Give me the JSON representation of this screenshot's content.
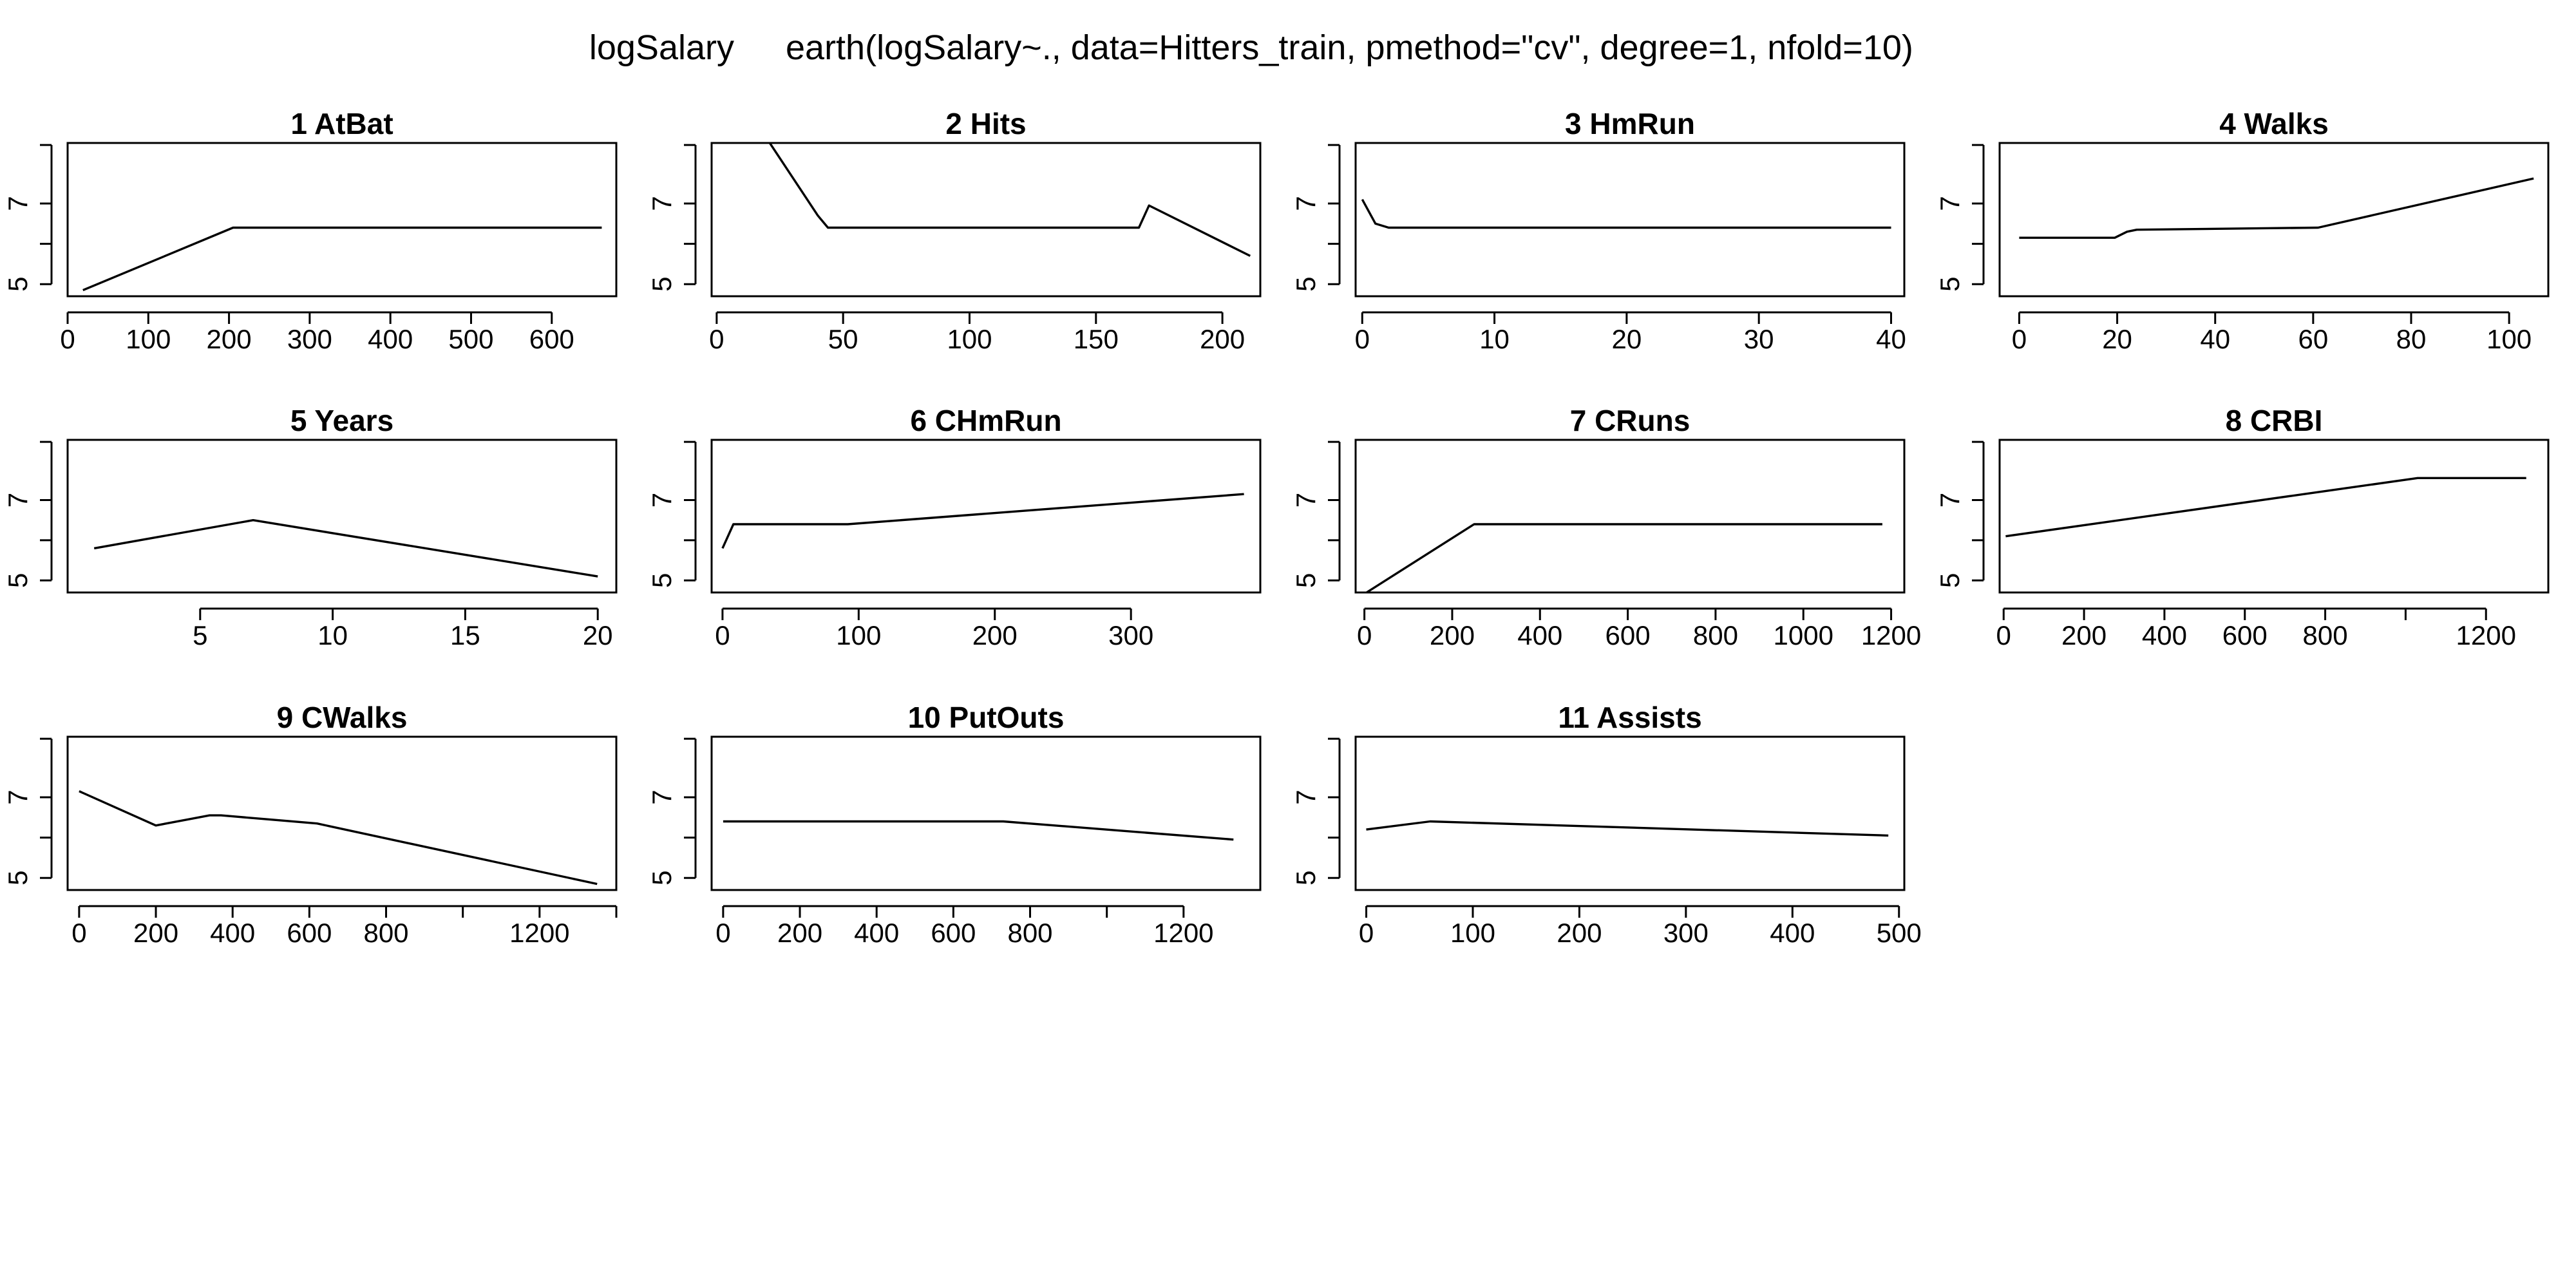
{
  "figure": {
    "response": "logSalary",
    "model_call": "earth(logSalary~., data=Hitters_train, pmethod=\"cv\", degree=1, nfold=10)"
  },
  "chart_data": [
    {
      "type": "line",
      "title": "1  AtBat",
      "xlabel": "",
      "ylabel": "",
      "xlim": [
        0,
        680
      ],
      "ylim": [
        4.7,
        8.5
      ],
      "x_ticks": [
        0,
        100,
        200,
        300,
        400,
        500,
        600
      ],
      "x_tick_labels": [
        "0",
        "100",
        "200",
        "300",
        "400",
        "500",
        "600"
      ],
      "y_ticks": [
        5,
        7
      ],
      "y_tick_labels": [
        "5",
        "7"
      ],
      "x": [
        19,
        205,
        662
      ],
      "y": [
        4.85,
        6.4,
        6.4
      ]
    },
    {
      "type": "line",
      "title": "2  Hits",
      "xlabel": "",
      "ylabel": "",
      "xlim": [
        -2,
        215
      ],
      "ylim": [
        4.7,
        8.5
      ],
      "x_ticks": [
        0,
        50,
        100,
        150,
        200
      ],
      "x_tick_labels": [
        "0",
        "50",
        "100",
        "150",
        "200"
      ],
      "y_ticks": [
        5,
        7
      ],
      "y_tick_labels": [
        "5",
        "7"
      ],
      "x": [
        21,
        40,
        44,
        167,
        171,
        211
      ],
      "y": [
        8.5,
        6.7,
        6.4,
        6.4,
        6.95,
        5.7
      ]
    },
    {
      "type": "line",
      "title": "3  HmRun",
      "xlabel": "",
      "ylabel": "",
      "xlim": [
        -0.5,
        41
      ],
      "ylim": [
        4.7,
        8.5
      ],
      "x_ticks": [
        0,
        10,
        20,
        30,
        40
      ],
      "x_tick_labels": [
        "0",
        "10",
        "20",
        "30",
        "40"
      ],
      "y_ticks": [
        5,
        7
      ],
      "y_tick_labels": [
        "5",
        "7"
      ],
      "x": [
        0,
        1,
        2,
        40
      ],
      "y": [
        7.1,
        6.5,
        6.4,
        6.4
      ]
    },
    {
      "type": "line",
      "title": "4  Walks",
      "xlabel": "",
      "ylabel": "",
      "xlim": [
        -4,
        108
      ],
      "ylim": [
        4.7,
        8.5
      ],
      "x_ticks": [
        0,
        20,
        40,
        60,
        80,
        100
      ],
      "x_tick_labels": [
        "0",
        "20",
        "40",
        "60",
        "80",
        "100"
      ],
      "y_ticks": [
        5,
        7
      ],
      "y_tick_labels": [
        "5",
        "7"
      ],
      "x": [
        0,
        19.5,
        22,
        24,
        61,
        105
      ],
      "y": [
        6.15,
        6.15,
        6.3,
        6.35,
        6.4,
        7.62
      ]
    },
    {
      "type": "line",
      "title": "5  Years",
      "xlabel": "",
      "ylabel": "",
      "xlim": [
        0,
        20.7
      ],
      "ylim": [
        4.7,
        8.5
      ],
      "x_ticks": [
        5,
        10,
        15,
        20
      ],
      "x_tick_labels": [
        "5",
        "10",
        "15",
        "20"
      ],
      "y_ticks": [
        5,
        7
      ],
      "y_tick_labels": [
        "5",
        "7"
      ],
      "x": [
        1,
        7,
        20
      ],
      "y": [
        5.8,
        6.5,
        5.1
      ]
    },
    {
      "type": "line",
      "title": "6  CHmRun",
      "xlabel": "",
      "ylabel": "",
      "xlim": [
        -8,
        395
      ],
      "ylim": [
        4.7,
        8.5
      ],
      "x_ticks": [
        0,
        100,
        200,
        300
      ],
      "x_tick_labels": [
        "0",
        "100",
        "200",
        "300"
      ],
      "y_ticks": [
        5,
        7
      ],
      "y_tick_labels": [
        "5",
        "7"
      ],
      "x": [
        0,
        8,
        92,
        383
      ],
      "y": [
        5.8,
        6.4,
        6.4,
        7.15
      ]
    },
    {
      "type": "line",
      "title": "7  CRuns",
      "xlabel": "",
      "ylabel": "",
      "xlim": [
        -20,
        1230
      ],
      "ylim": [
        4.7,
        8.5
      ],
      "x_ticks": [
        0,
        200,
        400,
        600,
        800,
        1000,
        1200
      ],
      "x_tick_labels": [
        "0",
        "200",
        "400",
        "600",
        "800",
        "1000",
        "1200"
      ],
      "y_ticks": [
        5,
        7
      ],
      "y_tick_labels": [
        "5",
        "7"
      ],
      "x": [
        5,
        250,
        1180
      ],
      "y": [
        4.7,
        6.4,
        6.4
      ]
    },
    {
      "type": "line",
      "title": "8  CRBI",
      "xlabel": "",
      "ylabel": "",
      "xlim": [
        -10,
        1355
      ],
      "ylim": [
        4.7,
        8.5
      ],
      "x_ticks": [
        0,
        200,
        400,
        600,
        800,
        1000,
        1200
      ],
      "x_tick_labels": [
        "0",
        "200",
        "400",
        "600",
        "800",
        "",
        "1200"
      ],
      "y_ticks": [
        5,
        7
      ],
      "y_tick_labels": [
        "5",
        "7"
      ],
      "x": [
        5,
        1030,
        1300
      ],
      "y": [
        6.1,
        7.55,
        7.55
      ]
    },
    {
      "type": "line",
      "title": "9  CWalks",
      "xlabel": "",
      "ylabel": "",
      "xlim": [
        -30,
        1400
      ],
      "ylim": [
        4.7,
        8.5
      ],
      "x_ticks": [
        0,
        200,
        400,
        600,
        800,
        1000,
        1200,
        1400
      ],
      "x_tick_labels": [
        "0",
        "200",
        "400",
        "600",
        "800",
        "",
        "1200",
        ""
      ],
      "y_ticks": [
        5,
        7
      ],
      "y_tick_labels": [
        "5",
        "7"
      ],
      "x": [
        0,
        200,
        340,
        370,
        620,
        1350
      ],
      "y": [
        7.15,
        6.3,
        6.55,
        6.55,
        6.35,
        4.85
      ]
    },
    {
      "type": "line",
      "title": "10  PutOuts",
      "xlabel": "",
      "ylabel": "",
      "xlim": [
        -30,
        1400
      ],
      "ylim": [
        4.7,
        8.5
      ],
      "x_ticks": [
        0,
        200,
        400,
        600,
        800,
        1000,
        1200
      ],
      "x_tick_labels": [
        "0",
        "200",
        "400",
        "600",
        "800",
        "",
        "1200"
      ],
      "y_ticks": [
        5,
        7
      ],
      "y_tick_labels": [
        "5",
        "7"
      ],
      "x": [
        0,
        730,
        1330
      ],
      "y": [
        6.4,
        6.4,
        5.95
      ]
    },
    {
      "type": "line",
      "title": "11  Assists",
      "xlabel": "",
      "ylabel": "",
      "xlim": [
        -10,
        505
      ],
      "ylim": [
        4.7,
        8.5
      ],
      "x_ticks": [
        0,
        100,
        200,
        300,
        400,
        500
      ],
      "x_tick_labels": [
        "0",
        "100",
        "200",
        "300",
        "400",
        "500"
      ],
      "y_ticks": [
        5,
        7
      ],
      "y_tick_labels": [
        "5",
        "7"
      ],
      "x": [
        0,
        60,
        490
      ],
      "y": [
        6.2,
        6.4,
        6.05
      ]
    }
  ]
}
